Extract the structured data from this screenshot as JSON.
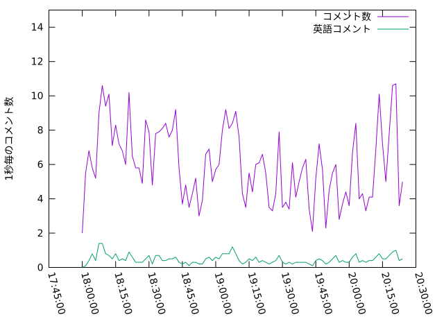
{
  "chart_data": {
    "type": "line",
    "title": "",
    "xlabel": "",
    "ylabel": "1秒毎のコメント数",
    "ylim": [
      0,
      15
    ],
    "yticks": [
      0,
      2,
      4,
      6,
      8,
      10,
      12,
      14
    ],
    "x_start": "17:45:00",
    "x_end": "20:30:00",
    "xticks": [
      "17:45:00",
      "18:00:00",
      "18:15:00",
      "18:30:00",
      "18:45:00",
      "19:00:00",
      "19:15:00",
      "19:30:00",
      "19:45:00",
      "20:00:00",
      "20:15:00",
      "20:30:00"
    ],
    "grid": false,
    "legend_position": "top-right",
    "series": [
      {
        "name": "コメント数",
        "color": "#9400d3",
        "x": [
          "18:00:00",
          "18:01:30",
          "18:03:00",
          "18:04:30",
          "18:06:00",
          "18:07:30",
          "18:09:00",
          "18:10:30",
          "18:12:00",
          "18:13:30",
          "18:15:00",
          "18:16:30",
          "18:18:00",
          "18:19:30",
          "18:21:00",
          "18:22:30",
          "18:24:00",
          "18:25:30",
          "18:27:00",
          "18:28:30",
          "18:30:00",
          "18:31:30",
          "18:33:00",
          "18:34:30",
          "18:36:00",
          "18:37:30",
          "18:39:00",
          "18:40:30",
          "18:42:00",
          "18:43:30",
          "18:45:00",
          "18:46:30",
          "18:48:00",
          "18:49:30",
          "18:51:00",
          "18:52:30",
          "18:54:00",
          "18:55:30",
          "18:57:00",
          "18:58:30",
          "19:00:00",
          "19:01:30",
          "19:03:00",
          "19:04:30",
          "19:06:00",
          "19:07:30",
          "19:09:00",
          "19:10:30",
          "19:12:00",
          "19:13:30",
          "19:15:00",
          "19:16:30",
          "19:18:00",
          "19:19:30",
          "19:21:00",
          "19:22:30",
          "19:24:00",
          "19:25:30",
          "19:27:00",
          "19:28:30",
          "19:30:00",
          "19:31:30",
          "19:33:00",
          "19:34:30",
          "19:36:00",
          "19:37:30",
          "19:39:00",
          "19:40:30",
          "19:42:00",
          "19:43:30",
          "19:45:00",
          "19:46:30",
          "19:48:00",
          "19:49:30",
          "19:51:00",
          "19:52:30",
          "19:54:00",
          "19:55:30",
          "19:57:00",
          "19:58:30",
          "20:00:00",
          "20:01:30",
          "20:03:00",
          "20:04:30",
          "20:06:00",
          "20:07:30",
          "20:09:00",
          "20:10:30",
          "20:12:00",
          "20:13:30",
          "20:15:00",
          "20:16:30",
          "20:18:00",
          "20:19:30",
          "20:21:00",
          "20:22:30",
          "20:24:00"
        ],
        "values": [
          2.0,
          5.5,
          6.8,
          5.8,
          5.2,
          9.0,
          10.6,
          9.4,
          10.1,
          7.1,
          8.3,
          7.2,
          6.8,
          6.0,
          10.2,
          6.5,
          5.8,
          5.8,
          4.9,
          8.6,
          7.9,
          4.8,
          7.8,
          7.9,
          8.1,
          8.4,
          7.6,
          8.0,
          9.2,
          5.8,
          3.7,
          4.8,
          3.5,
          4.3,
          5.2,
          3.0,
          3.9,
          6.6,
          6.9,
          5.0,
          5.7,
          6.0,
          8.0,
          9.2,
          8.1,
          8.4,
          9.1,
          7.6,
          4.3,
          3.5,
          5.5,
          4.4,
          6.0,
          6.1,
          6.6,
          5.5,
          3.5,
          3.3,
          4.3,
          7.9,
          3.5,
          3.8,
          3.4,
          6.1,
          4.1,
          5.0,
          5.8,
          6.3,
          3.4,
          2.1,
          5.2,
          7.2,
          5.7,
          2.3,
          4.5,
          5.5,
          6.0,
          2.8,
          3.7,
          4.4,
          3.6,
          6.7,
          8.4,
          4.0,
          4.3,
          3.3,
          4.1,
          4.1,
          6.9,
          10.1,
          7.2,
          5.0,
          7.8,
          10.6,
          10.7,
          3.6,
          5.0
        ]
      },
      {
        "name": "英語コメント",
        "color": "#009e73",
        "x": [
          "18:00:00",
          "18:01:30",
          "18:03:00",
          "18:04:30",
          "18:06:00",
          "18:07:30",
          "18:09:00",
          "18:10:30",
          "18:12:00",
          "18:13:30",
          "18:15:00",
          "18:16:30",
          "18:18:00",
          "18:19:30",
          "18:21:00",
          "18:22:30",
          "18:24:00",
          "18:25:30",
          "18:27:00",
          "18:28:30",
          "18:30:00",
          "18:31:30",
          "18:33:00",
          "18:34:30",
          "18:36:00",
          "18:37:30",
          "18:39:00",
          "18:40:30",
          "18:42:00",
          "18:43:30",
          "18:45:00",
          "18:46:30",
          "18:48:00",
          "18:49:30",
          "18:51:00",
          "18:52:30",
          "18:54:00",
          "18:55:30",
          "18:57:00",
          "18:58:30",
          "19:00:00",
          "19:01:30",
          "19:03:00",
          "19:04:30",
          "19:06:00",
          "19:07:30",
          "19:09:00",
          "19:10:30",
          "19:12:00",
          "19:13:30",
          "19:15:00",
          "19:16:30",
          "19:18:00",
          "19:19:30",
          "19:21:00",
          "19:22:30",
          "19:24:00",
          "19:25:30",
          "19:27:00",
          "19:28:30",
          "19:30:00",
          "19:31:30",
          "19:33:00",
          "19:34:30",
          "19:36:00",
          "19:37:30",
          "19:39:00",
          "19:40:30",
          "19:42:00",
          "19:43:30",
          "19:45:00",
          "19:46:30",
          "19:48:00",
          "19:49:30",
          "19:51:00",
          "19:52:30",
          "19:54:00",
          "19:55:30",
          "19:57:00",
          "19:58:30",
          "20:00:00",
          "20:01:30",
          "20:03:00",
          "20:04:30",
          "20:06:00",
          "20:07:30",
          "20:09:00",
          "20:10:30",
          "20:12:00",
          "20:13:30",
          "20:15:00",
          "20:16:30",
          "20:18:00",
          "20:19:30",
          "20:21:00",
          "20:22:30",
          "20:24:00"
        ],
        "values": [
          0.0,
          0.1,
          0.4,
          0.8,
          0.4,
          1.4,
          1.4,
          0.8,
          0.7,
          0.5,
          0.8,
          0.4,
          0.5,
          0.4,
          0.9,
          0.6,
          0.3,
          0.3,
          0.3,
          0.5,
          0.7,
          0.2,
          0.7,
          0.7,
          0.4,
          0.4,
          0.5,
          0.5,
          0.6,
          0.3,
          0.2,
          0.3,
          0.1,
          0.3,
          0.3,
          0.2,
          0.2,
          0.5,
          0.6,
          0.4,
          0.6,
          0.5,
          0.8,
          0.8,
          0.8,
          1.2,
          0.8,
          0.4,
          0.2,
          0.3,
          0.5,
          0.4,
          0.6,
          0.3,
          0.4,
          0.3,
          0.2,
          0.3,
          0.4,
          0.7,
          0.3,
          0.2,
          0.3,
          0.2,
          0.3,
          0.3,
          0.3,
          0.3,
          0.2,
          0.1,
          0.4,
          0.5,
          0.4,
          0.2,
          0.3,
          0.5,
          0.7,
          0.3,
          0.4,
          0.3,
          0.3,
          0.6,
          0.8,
          0.3,
          0.4,
          0.3,
          0.4,
          0.4,
          0.6,
          0.8,
          0.5,
          0.5,
          0.7,
          0.9,
          1.0,
          0.4,
          0.5
        ]
      }
    ]
  }
}
